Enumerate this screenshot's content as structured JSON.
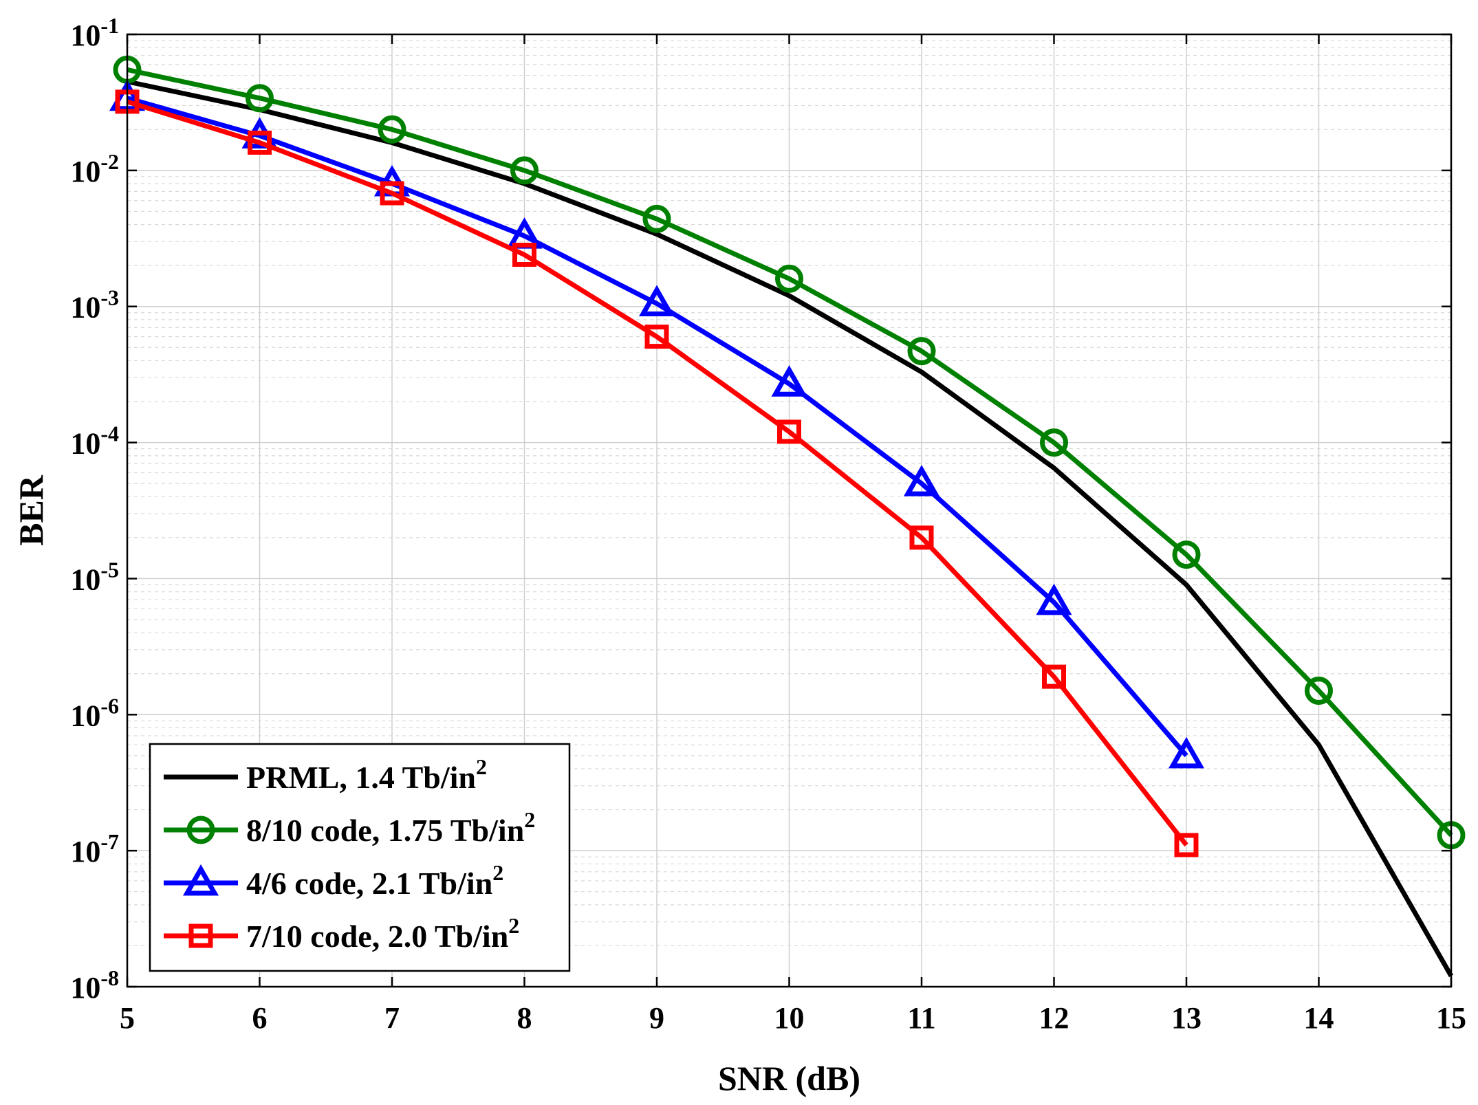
{
  "chart_data": {
    "type": "line",
    "title": "",
    "xlabel": "SNR (dB)",
    "ylabel": "BER",
    "xlim": [
      5,
      15
    ],
    "ylim": [
      1e-08,
      0.1
    ],
    "yscale": "log",
    "grid": true,
    "legend_position": "bottom-left",
    "x_ticks": [
      5,
      6,
      7,
      8,
      9,
      10,
      11,
      12,
      13,
      14,
      15
    ],
    "x_tick_labels": [
      "5",
      "6",
      "7",
      "8",
      "9",
      "10",
      "11",
      "12",
      "13",
      "14",
      "15"
    ],
    "y_ticks": [
      {
        "value": 0.1,
        "base": "10",
        "exp": "-1"
      },
      {
        "value": 0.01,
        "base": "10",
        "exp": "-2"
      },
      {
        "value": 0.001,
        "base": "10",
        "exp": "-3"
      },
      {
        "value": 0.0001,
        "base": "10",
        "exp": "-4"
      },
      {
        "value": 1e-05,
        "base": "10",
        "exp": "-5"
      },
      {
        "value": 1e-06,
        "base": "10",
        "exp": "-6"
      },
      {
        "value": 1e-07,
        "base": "10",
        "exp": "-7"
      },
      {
        "value": 1e-08,
        "base": "10",
        "exp": "-8"
      }
    ],
    "series": [
      {
        "name": "PRML, 1.4 Tb/in",
        "name_sup": "2",
        "color": "#000000",
        "marker": "none",
        "x": [
          5,
          6,
          7,
          8,
          9,
          10,
          11,
          12,
          13,
          14,
          15
        ],
        "y": [
          0.045,
          0.028,
          0.016,
          0.008,
          0.0034,
          0.0012,
          0.00033,
          6.5e-05,
          9e-06,
          6e-07,
          1.2e-08
        ]
      },
      {
        "name": "8/10 code, 1.75 Tb/in",
        "name_sup": "2",
        "color": "#008000",
        "marker": "circle",
        "x": [
          5,
          6,
          7,
          8,
          9,
          10,
          11,
          12,
          13,
          14,
          15
        ],
        "y": [
          0.055,
          0.034,
          0.02,
          0.01,
          0.0044,
          0.0016,
          0.00047,
          0.0001,
          1.5e-05,
          1.5e-06,
          1.3e-07
        ]
      },
      {
        "name": "4/6 code, 2.1 Tb/in",
        "name_sup": "2",
        "color": "#0000ff",
        "marker": "triangle",
        "x": [
          5,
          6,
          7,
          8,
          9,
          10,
          11,
          12,
          13
        ],
        "y": [
          0.034,
          0.018,
          0.008,
          0.0033,
          0.00105,
          0.00027,
          5e-05,
          6.7e-06,
          5e-07
        ]
      },
      {
        "name": "7/10 code, 2.0 Tb/in",
        "name_sup": "2",
        "color": "#ff0000",
        "marker": "square",
        "x": [
          5,
          6,
          7,
          8,
          9,
          10,
          11,
          12,
          13
        ],
        "y": [
          0.032,
          0.016,
          0.0068,
          0.0024,
          0.0006,
          0.00012,
          2e-05,
          1.9e-06,
          1.1e-07
        ]
      }
    ]
  }
}
